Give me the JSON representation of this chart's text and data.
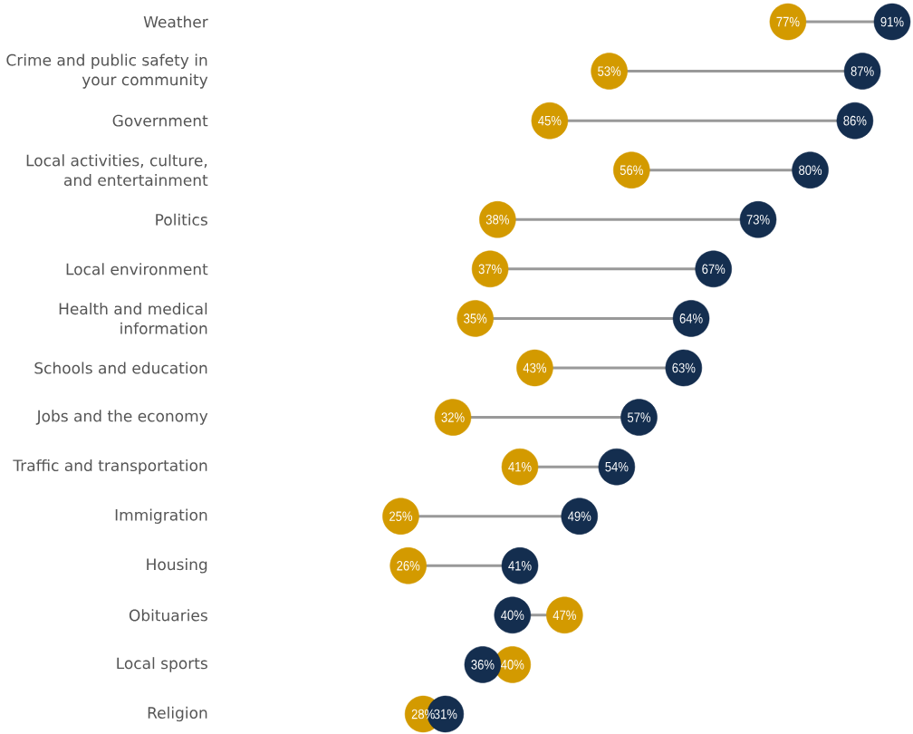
{
  "chart_data": {
    "type": "scatter",
    "orientation": "horizontal",
    "categories": [
      "Weather",
      "Crime and public safety in your community",
      "Government",
      "Local activities, culture, and entertainment",
      "Politics",
      "Local environment",
      "Health and medical information",
      "Schools and education",
      "Jobs and the economy",
      "Traffic and transportation",
      "Immigration",
      "Housing",
      "Obituaries",
      "Local sports",
      "Religion"
    ],
    "series": [
      {
        "color": "#d39a00",
        "values": [
          77,
          53,
          45,
          56,
          38,
          37,
          35,
          43,
          32,
          41,
          25,
          26,
          47,
          40,
          28
        ],
        "value_labels": [
          "77%",
          "53%",
          "45%",
          "56%",
          "38%",
          "37%",
          "35%",
          "43%",
          "32%",
          "41%",
          "25%",
          "26%",
          "47%",
          "40%",
          "28%"
        ]
      },
      {
        "color": "#142e4f",
        "values": [
          91,
          87,
          86,
          80,
          73,
          67,
          64,
          63,
          57,
          54,
          49,
          41,
          40,
          36,
          31
        ],
        "value_labels": [
          "91%",
          "87%",
          "86%",
          "80%",
          "73%",
          "67%",
          "64%",
          "63%",
          "57%",
          "54%",
          "49%",
          "41%",
          "40%",
          "36%",
          "31%"
        ]
      }
    ]
  }
}
